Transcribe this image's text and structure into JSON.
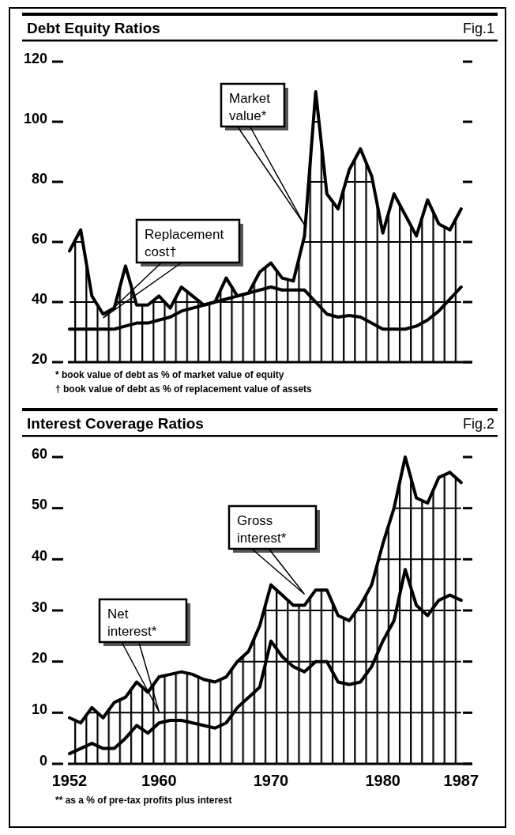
{
  "chart_data": [
    {
      "type": "line",
      "title": "Debt Equity Ratios",
      "subtitle": "Fig.1",
      "x": [
        1952,
        1953,
        1954,
        1955,
        1956,
        1957,
        1958,
        1959,
        1960,
        1961,
        1962,
        1963,
        1964,
        1965,
        1966,
        1967,
        1968,
        1969,
        1970,
        1971,
        1972,
        1973,
        1974,
        1975,
        1976,
        1977,
        1978,
        1979,
        1980,
        1981,
        1982,
        1983,
        1984,
        1985,
        1986,
        1987
      ],
      "series": [
        {
          "name": "Market value*",
          "type": "area",
          "color": "#000000",
          "values": [
            57,
            64,
            42,
            36,
            38,
            52,
            39,
            39,
            42,
            38,
            45,
            42,
            39,
            40,
            48,
            42,
            43,
            50,
            53,
            48,
            47,
            62,
            110,
            76,
            71,
            84,
            91,
            82,
            63,
            76,
            69,
            62,
            74,
            66,
            64,
            71
          ]
        },
        {
          "name": "Replacement cost†",
          "color": "#000000",
          "values": [
            31,
            31,
            31,
            31,
            31,
            32,
            33,
            33,
            34,
            35,
            37,
            38,
            39,
            40,
            41,
            42,
            43,
            44,
            45,
            44,
            44,
            44,
            40,
            36,
            35,
            35.5,
            35,
            33,
            31,
            31,
            31,
            32,
            34,
            37,
            41,
            45
          ]
        }
      ],
      "xlim": [
        1952,
        1988
      ],
      "ylim": [
        20,
        120
      ],
      "yticks": [
        20,
        40,
        60,
        80,
        100,
        120
      ],
      "grid": "y",
      "tick_labels": "y",
      "annotations": [
        "* book value of debt as % of market value of equity",
        "† book value of debt as % of replacement value of assets"
      ]
    },
    {
      "type": "line",
      "title": "Interest Coverage Ratios",
      "subtitle": "Fig.2",
      "x": [
        1952,
        1953,
        1954,
        1955,
        1956,
        1957,
        1958,
        1959,
        1960,
        1961,
        1962,
        1963,
        1964,
        1965,
        1966,
        1967,
        1968,
        1969,
        1970,
        1971,
        1972,
        1973,
        1974,
        1975,
        1976,
        1977,
        1978,
        1979,
        1980,
        1981,
        1982,
        1983,
        1984,
        1985,
        1986,
        1987
      ],
      "series": [
        {
          "name": "Gross interest*",
          "type": "area",
          "color": "#000000",
          "values": [
            9,
            8,
            11,
            9,
            12,
            13,
            16,
            14,
            17,
            17.5,
            18,
            17.5,
            16.5,
            16,
            17,
            20,
            22,
            27,
            35,
            33,
            31,
            31,
            34,
            34,
            29,
            28,
            31,
            35,
            43,
            50,
            60,
            52,
            51,
            56,
            57,
            55
          ]
        },
        {
          "name": "Net interest*",
          "color": "#000000",
          "values": [
            2,
            3,
            4,
            3,
            3,
            5,
            7.5,
            6,
            8,
            8.5,
            8.5,
            8,
            7.5,
            7,
            8,
            11,
            13,
            15,
            24,
            21,
            19,
            18,
            20,
            20,
            16,
            15.5,
            16,
            19,
            24,
            28,
            38,
            31,
            29,
            32,
            33,
            32
          ]
        }
      ],
      "xlim": [
        1952,
        1988
      ],
      "xticks": [
        1952,
        1960,
        1970,
        1980,
        1987
      ],
      "ylim": [
        0,
        60
      ],
      "yticks": [
        0,
        10,
        20,
        30,
        40,
        50,
        60
      ],
      "grid": "y",
      "annotations": [
        "** as a % of pre-tax profits plus interest"
      ]
    }
  ]
}
